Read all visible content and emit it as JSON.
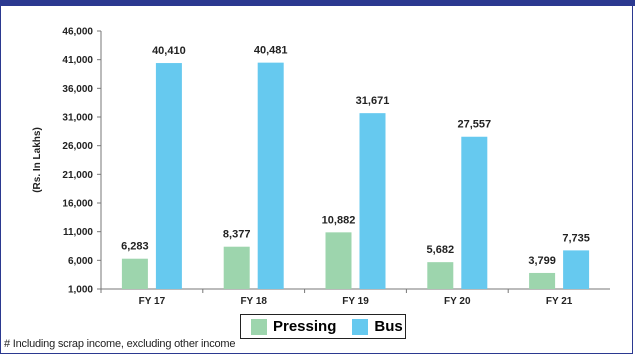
{
  "chart_data": {
    "type": "bar",
    "categories": [
      "FY 17",
      "FY 18",
      "FY 19",
      "FY 20",
      "FY 21"
    ],
    "series": [
      {
        "name": "Pressing",
        "values": [
          6283,
          8377,
          10882,
          5682,
          3799
        ],
        "labels": [
          "6,283",
          "8,377",
          "10,882",
          "5,682",
          "3,799"
        ],
        "color": "#9dd5ad"
      },
      {
        "name": "Bus",
        "values": [
          40410,
          40481,
          31671,
          27557,
          7735
        ],
        "labels": [
          "40,410",
          "40,481",
          "31,671",
          "27,557",
          "7,735"
        ],
        "color": "#66c9ef"
      }
    ],
    "ylabel": "(Rs. In Lakhs)",
    "ylim": [
      1000,
      46000
    ],
    "yticks": [
      1000,
      6000,
      11000,
      16000,
      21000,
      26000,
      31000,
      36000,
      41000,
      46000
    ],
    "ytick_labels": [
      "1,000",
      "6,000",
      "11,000",
      "16,000",
      "21,000",
      "26,000",
      "31,000",
      "36,000",
      "41,000",
      "46,000"
    ],
    "legend_position": "bottom-center",
    "grid": false
  },
  "footnote": "# Including scrap income, excluding other income"
}
